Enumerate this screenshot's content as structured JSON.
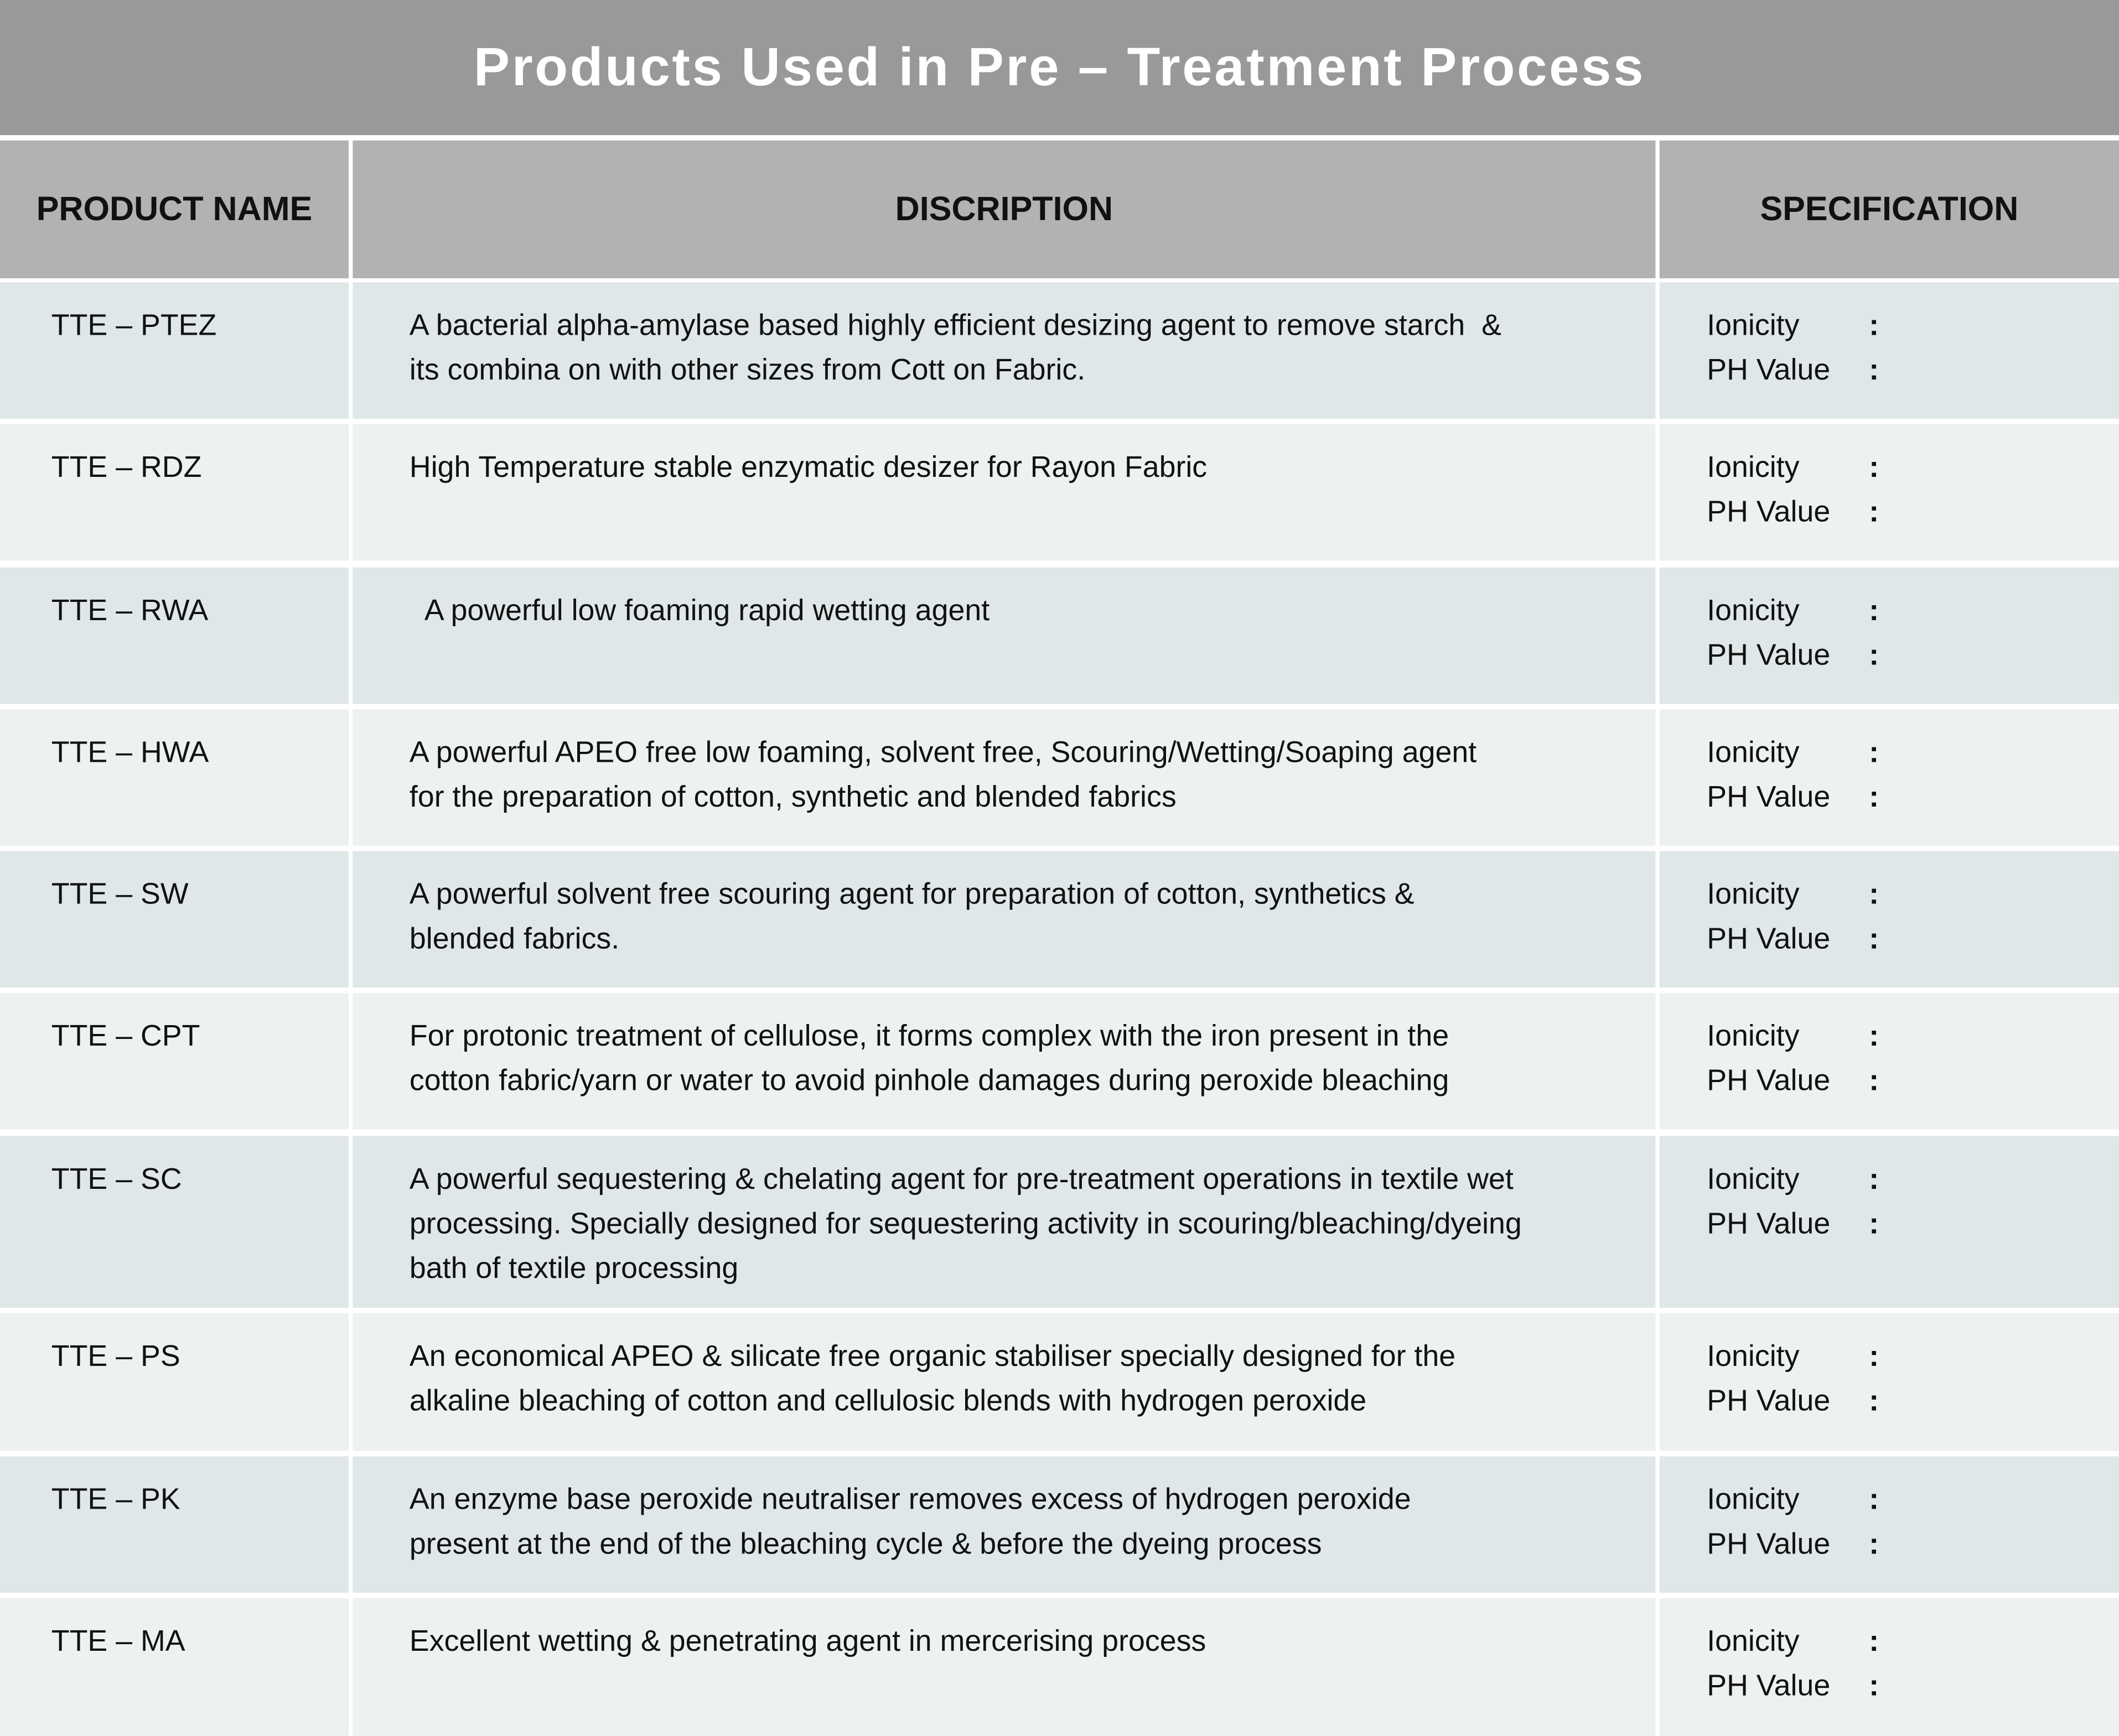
{
  "title": "Products Used in Pre – Treatment Process",
  "headers": [
    "PRODUCT NAME",
    "DISCRIPTION",
    "SPECIFICATION"
  ],
  "spec_labels": {
    "ionicity": "Ionicity",
    "ph": "PH Value",
    "colon": ":"
  },
  "colors": {
    "title_bg": "#999999",
    "header_bg": "#b2b2b2",
    "row_a": "#dfe7e8",
    "row_b": "#edf1f0"
  },
  "rows": [
    {
      "name": "TTE – PTEZ",
      "description": [
        "A bacterial alpha-amylase based highly efficient desizing agent to remove starch  &",
        "its combina on with other sizes from Cott on Fabric."
      ]
    },
    {
      "name": "TTE – RDZ",
      "description": [
        "High Temperature stable enzymatic desizer for Rayon Fabric"
      ]
    },
    {
      "name": "TTE – RWA",
      "description": [
        "  A powerful low foaming rapid wetting agent"
      ]
    },
    {
      "name": "TTE – HWA",
      "description": [
        "A powerful APEO free low foaming, solvent free, Scouring/Wetting/Soaping agent",
        "for the preparation of cotton, synthetic and blended fabrics"
      ]
    },
    {
      "name": "TTE – SW",
      "description": [
        "A powerful solvent free scouring agent for preparation of cotton, synthetics &",
        "blended fabrics."
      ]
    },
    {
      "name": "TTE – CPT",
      "description": [
        "For protonic treatment of cellulose, it forms complex with the iron present in the",
        "cotton fabric/yarn or water to avoid pinhole damages during peroxide bleaching"
      ]
    },
    {
      "name": "TTE – SC",
      "description": [
        "A powerful sequestering & chelating agent for pre-treatment operations in textile wet",
        "processing. Specially designed for sequestering activity in scouring/bleaching/dyeing",
        "bath of textile processing"
      ]
    },
    {
      "name": "TTE – PS",
      "description": [
        "An economical APEO & silicate free organic stabiliser specially designed for the",
        "alkaline bleaching of cotton and cellulosic blends with hydrogen peroxide"
      ]
    },
    {
      "name": "TTE – PK",
      "description": [
        "An enzyme base peroxide neutraliser removes excess of hydrogen peroxide",
        "present at the end of the bleaching cycle & before the dyeing process"
      ]
    },
    {
      "name": "TTE – MA",
      "description": [
        "Excellent wetting & penetrating agent in mercerising process"
      ]
    }
  ]
}
